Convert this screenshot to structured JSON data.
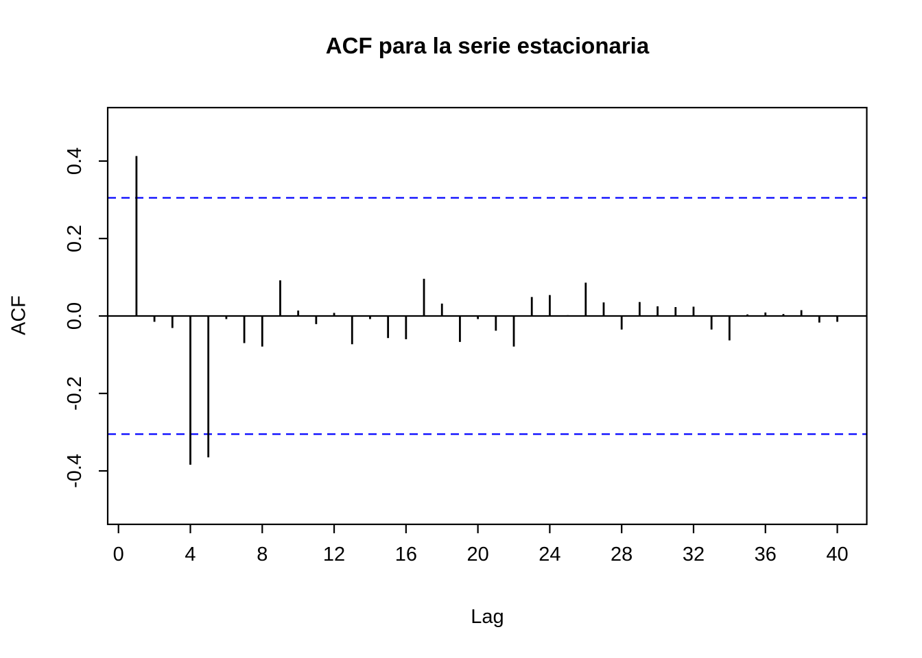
{
  "page": {
    "background": "#ffffff",
    "foreground": "#000000"
  },
  "chart_data": {
    "type": "bar",
    "subtype": "acf-stem-plot",
    "title": "ACF para la serie estacionaria",
    "xlabel": "Lag",
    "ylabel": "ACF",
    "grid": false,
    "legend": "none",
    "xlim": [
      -0.6,
      41.64
    ],
    "ylim": [
      -0.538,
      0.538
    ],
    "x_ticks": [
      0,
      4,
      8,
      12,
      16,
      20,
      24,
      28,
      32,
      36,
      40
    ],
    "x_tick_labels": [
      "0",
      "4",
      "8",
      "12",
      "16",
      "20",
      "24",
      "28",
      "32",
      "36",
      "40"
    ],
    "y_ticks": [
      0.4,
      0.2,
      0.0,
      -0.2,
      -0.4
    ],
    "y_tick_labels": [
      "0.4",
      "0.2",
      "0.0",
      "-0.2",
      "-0.4"
    ],
    "confidence_bounds": {
      "upper": 0.305,
      "lower": -0.305
    },
    "confidence_line_color": "#0000ff",
    "confidence_line_style": "dashed",
    "bar_color": "#000000",
    "zero_line": 0.0,
    "lags": [
      1,
      2,
      3,
      4,
      5,
      6,
      7,
      8,
      9,
      10,
      11,
      12,
      13,
      14,
      15,
      16,
      17,
      18,
      19,
      20,
      21,
      22,
      23,
      24,
      25,
      26,
      27,
      28,
      29,
      30,
      31,
      32,
      33,
      34,
      35,
      36,
      37,
      38,
      39,
      40
    ],
    "values": [
      0.413,
      -0.015,
      -0.031,
      -0.384,
      -0.365,
      -0.008,
      -0.07,
      -0.079,
      0.092,
      0.014,
      -0.021,
      0.008,
      -0.073,
      -0.008,
      -0.057,
      -0.06,
      0.096,
      0.032,
      -0.067,
      -0.008,
      -0.038,
      -0.079,
      0.049,
      0.054,
      0.002,
      0.086,
      0.035,
      -0.035,
      0.036,
      0.025,
      0.023,
      0.024,
      -0.035,
      -0.063,
      0.004,
      0.009,
      0.005,
      0.015,
      -0.017,
      -0.015
    ]
  }
}
